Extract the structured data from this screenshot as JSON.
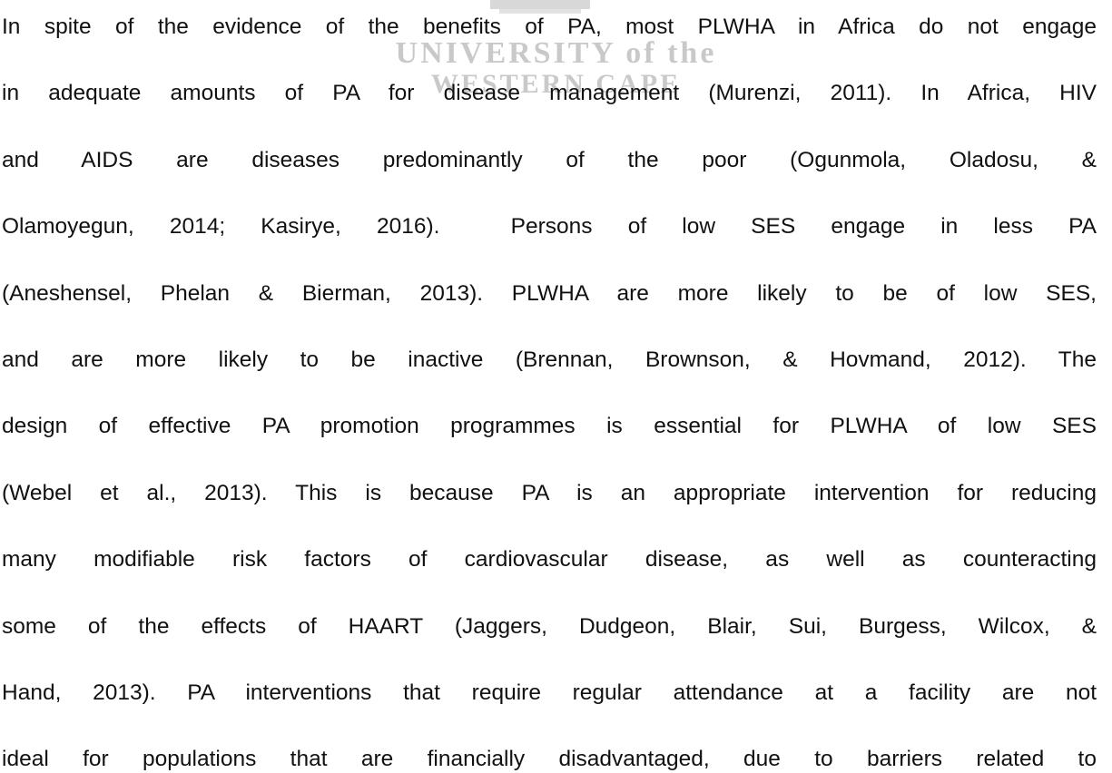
{
  "watermark": {
    "line1": "UNIVERSITY of the",
    "line2": "WESTERN CAPE"
  },
  "paragraph": {
    "lines": [
      "In spite of the evidence of the benefits of PA, most PLWHA in Africa do not engage",
      "in adequate amounts of PA for disease management (Murenzi, 2011). In Africa, HIV",
      "and AIDS are diseases predominantly of the poor (Ogunmola, Oladosu, &",
      "Olamoyegun, 2014; Kasirye, 2016).  Persons of low SES engage in less PA",
      "(Aneshensel, Phelan & Bierman, 2013). PLWHA are more likely to be of low SES,",
      "and are more likely to be inactive (Brennan, Brownson, & Hovmand, 2012). The",
      "design of effective PA promotion programmes is essential for PLWHA of low SES",
      "(Webel et al., 2013). This is because PA is an appropriate intervention for reducing",
      "many modifiable risk factors of cardiovascular disease, as well as counteracting",
      "some of the effects of HAART (Jaggers, Dudgeon, Blair, Sui, Burgess, Wilcox, &",
      "Hand, 2013). PA interventions that require regular attendance at a facility are not",
      "ideal for populations that are financially disadvantaged, due to barriers related to"
    ]
  }
}
